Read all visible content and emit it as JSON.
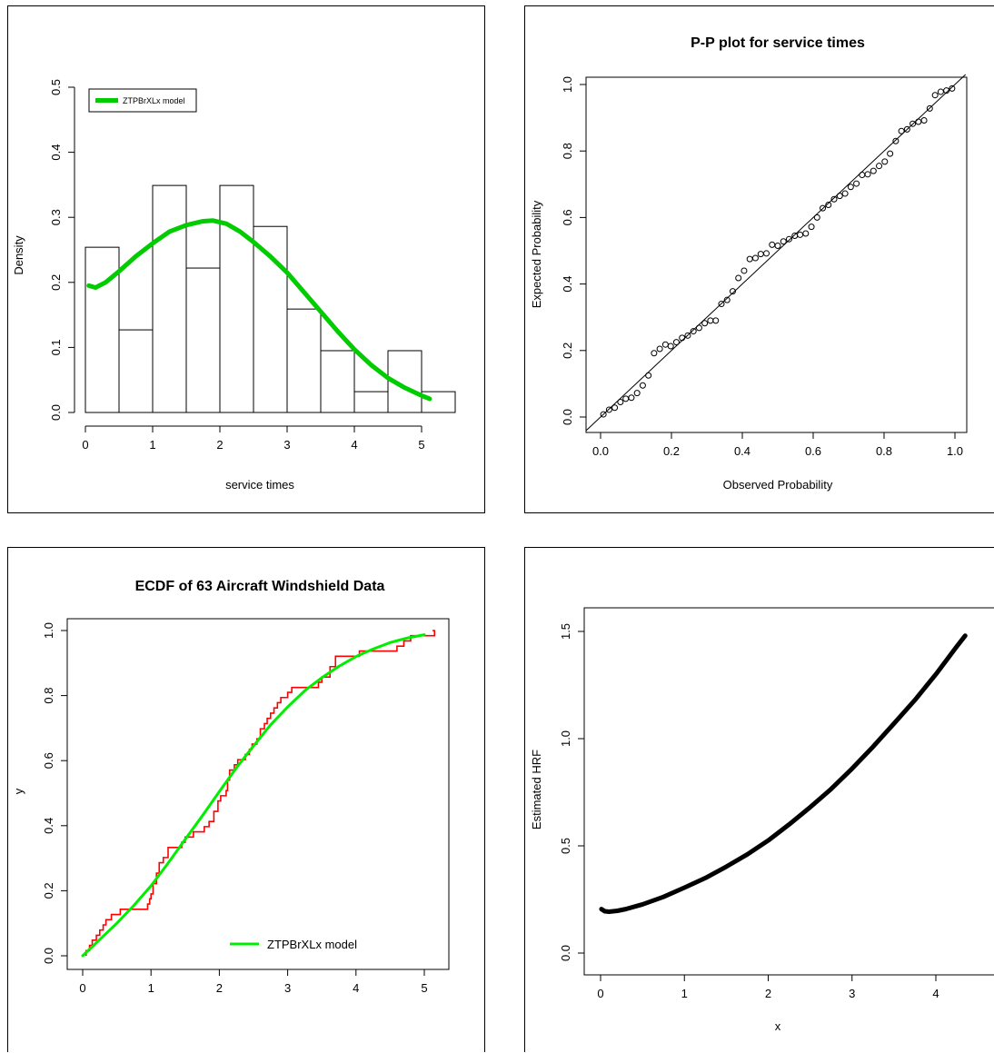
{
  "colors": {
    "density_curve": "#00cc00",
    "ecdf_step": "#ff0000",
    "ecdf_model": "#00ee00",
    "points": "#000000"
  },
  "chart_data": [
    {
      "type": "bar",
      "subtype": "histogram-with-density",
      "title": "",
      "xlabel": "service times",
      "ylabel": "Density",
      "xlim": [
        0,
        5.4
      ],
      "ylim": [
        0,
        0.5
      ],
      "xticks": [
        "0",
        "1",
        "2",
        "3",
        "4",
        "5"
      ],
      "yticks": [
        "0.0",
        "0.1",
        "0.2",
        "0.3",
        "0.4",
        "0.5"
      ],
      "bins": [
        {
          "from": 0.0,
          "to": 0.5,
          "density": 0.254
        },
        {
          "from": 0.5,
          "to": 1.0,
          "density": 0.127
        },
        {
          "from": 1.0,
          "to": 1.5,
          "density": 0.349
        },
        {
          "from": 1.5,
          "to": 2.0,
          "density": 0.222
        },
        {
          "from": 2.0,
          "to": 2.5,
          "density": 0.349
        },
        {
          "from": 2.5,
          "to": 3.0,
          "density": 0.286
        },
        {
          "from": 3.0,
          "to": 3.5,
          "density": 0.159
        },
        {
          "from": 3.5,
          "to": 4.0,
          "density": 0.095
        },
        {
          "from": 4.0,
          "to": 4.5,
          "density": 0.032
        },
        {
          "from": 4.5,
          "to": 5.0,
          "density": 0.095
        },
        {
          "from": 5.0,
          "to": 5.5,
          "density": 0.032
        }
      ],
      "series": [
        {
          "name": "ZTPBrXLx model",
          "x": [
            0.05,
            0.15,
            0.3,
            0.5,
            0.75,
            1.0,
            1.25,
            1.5,
            1.75,
            1.9,
            2.1,
            2.3,
            2.5,
            2.75,
            3.0,
            3.25,
            3.5,
            3.75,
            4.0,
            4.25,
            4.5,
            4.75,
            5.0,
            5.12
          ],
          "y": [
            0.195,
            0.192,
            0.2,
            0.217,
            0.24,
            0.26,
            0.278,
            0.288,
            0.294,
            0.295,
            0.29,
            0.278,
            0.262,
            0.24,
            0.215,
            0.185,
            0.155,
            0.125,
            0.097,
            0.073,
            0.053,
            0.038,
            0.026,
            0.021
          ]
        }
      ],
      "legend": {
        "position": "top-left",
        "entries": [
          "ZTPBrXLx model"
        ]
      }
    },
    {
      "type": "scatter",
      "title": "P-P plot for service times",
      "xlabel": "Observed Probability",
      "ylabel": "Expected Probability",
      "xlim": [
        0,
        1
      ],
      "ylim": [
        0,
        1
      ],
      "xticks": [
        "0.0",
        "0.2",
        "0.4",
        "0.6",
        "0.8",
        "1.0"
      ],
      "yticks": [
        "0.0",
        "0.2",
        "0.4",
        "0.6",
        "0.8",
        "1.0"
      ],
      "reference_line": "y = x",
      "points": [
        [
          0.008,
          0.008
        ],
        [
          0.024,
          0.022
        ],
        [
          0.04,
          0.028
        ],
        [
          0.056,
          0.045
        ],
        [
          0.071,
          0.055
        ],
        [
          0.087,
          0.058
        ],
        [
          0.103,
          0.072
        ],
        [
          0.119,
          0.095
        ],
        [
          0.135,
          0.125
        ],
        [
          0.151,
          0.192
        ],
        [
          0.167,
          0.205
        ],
        [
          0.183,
          0.218
        ],
        [
          0.198,
          0.213
        ],
        [
          0.214,
          0.225
        ],
        [
          0.23,
          0.238
        ],
        [
          0.246,
          0.245
        ],
        [
          0.262,
          0.258
        ],
        [
          0.278,
          0.268
        ],
        [
          0.294,
          0.282
        ],
        [
          0.31,
          0.29
        ],
        [
          0.325,
          0.29
        ],
        [
          0.341,
          0.34
        ],
        [
          0.357,
          0.352
        ],
        [
          0.373,
          0.378
        ],
        [
          0.389,
          0.418
        ],
        [
          0.405,
          0.44
        ],
        [
          0.421,
          0.475
        ],
        [
          0.437,
          0.478
        ],
        [
          0.452,
          0.49
        ],
        [
          0.468,
          0.492
        ],
        [
          0.484,
          0.518
        ],
        [
          0.5,
          0.515
        ],
        [
          0.516,
          0.528
        ],
        [
          0.532,
          0.535
        ],
        [
          0.548,
          0.545
        ],
        [
          0.563,
          0.548
        ],
        [
          0.579,
          0.552
        ],
        [
          0.595,
          0.572
        ],
        [
          0.611,
          0.6
        ],
        [
          0.627,
          0.628
        ],
        [
          0.643,
          0.638
        ],
        [
          0.659,
          0.655
        ],
        [
          0.675,
          0.665
        ],
        [
          0.69,
          0.672
        ],
        [
          0.706,
          0.692
        ],
        [
          0.722,
          0.702
        ],
        [
          0.738,
          0.728
        ],
        [
          0.754,
          0.73
        ],
        [
          0.77,
          0.74
        ],
        [
          0.786,
          0.755
        ],
        [
          0.802,
          0.768
        ],
        [
          0.817,
          0.792
        ],
        [
          0.833,
          0.83
        ],
        [
          0.849,
          0.86
        ],
        [
          0.865,
          0.865
        ],
        [
          0.881,
          0.882
        ],
        [
          0.897,
          0.888
        ],
        [
          0.913,
          0.892
        ],
        [
          0.929,
          0.928
        ],
        [
          0.944,
          0.968
        ],
        [
          0.96,
          0.978
        ],
        [
          0.976,
          0.982
        ],
        [
          0.992,
          0.988
        ]
      ]
    },
    {
      "type": "line",
      "subtype": "ecdf-with-model",
      "title": "ECDF of 63 Aircraft Windshield Data",
      "xlabel": "",
      "ylabel": "y",
      "xlim": [
        -0.1,
        5.2
      ],
      "ylim": [
        0,
        1
      ],
      "xticks": [
        "0",
        "1",
        "2",
        "3",
        "4",
        "5"
      ],
      "yticks": [
        "0.0",
        "0.2",
        "0.4",
        "0.6",
        "0.8",
        "1.0"
      ],
      "ecdf_steps": [
        [
          0.05,
          0.016
        ],
        [
          0.1,
          0.032
        ],
        [
          0.14,
          0.048
        ],
        [
          0.2,
          0.063
        ],
        [
          0.25,
          0.079
        ],
        [
          0.3,
          0.095
        ],
        [
          0.34,
          0.111
        ],
        [
          0.42,
          0.127
        ],
        [
          0.55,
          0.143
        ],
        [
          0.95,
          0.159
        ],
        [
          0.98,
          0.175
        ],
        [
          1.0,
          0.19
        ],
        [
          1.03,
          0.222
        ],
        [
          1.08,
          0.254
        ],
        [
          1.12,
          0.286
        ],
        [
          1.18,
          0.302
        ],
        [
          1.25,
          0.333
        ],
        [
          1.45,
          0.349
        ],
        [
          1.5,
          0.365
        ],
        [
          1.62,
          0.381
        ],
        [
          1.78,
          0.397
        ],
        [
          1.85,
          0.413
        ],
        [
          1.92,
          0.444
        ],
        [
          1.98,
          0.476
        ],
        [
          2.02,
          0.492
        ],
        [
          2.1,
          0.508
        ],
        [
          2.12,
          0.54
        ],
        [
          2.15,
          0.571
        ],
        [
          2.22,
          0.587
        ],
        [
          2.27,
          0.603
        ],
        [
          2.38,
          0.619
        ],
        [
          2.44,
          0.635
        ],
        [
          2.48,
          0.651
        ],
        [
          2.55,
          0.667
        ],
        [
          2.6,
          0.698
        ],
        [
          2.66,
          0.714
        ],
        [
          2.7,
          0.73
        ],
        [
          2.75,
          0.746
        ],
        [
          2.8,
          0.762
        ],
        [
          2.85,
          0.778
        ],
        [
          2.9,
          0.794
        ],
        [
          3.0,
          0.81
        ],
        [
          3.06,
          0.825
        ],
        [
          3.45,
          0.841
        ],
        [
          3.5,
          0.857
        ],
        [
          3.62,
          0.889
        ],
        [
          3.7,
          0.921
        ],
        [
          4.05,
          0.937
        ],
        [
          4.6,
          0.952
        ],
        [
          4.7,
          0.968
        ],
        [
          4.8,
          0.984
        ],
        [
          5.15,
          1.0
        ]
      ],
      "series": [
        {
          "name": "ZTPBrXLx model",
          "x": [
            0.0,
            0.25,
            0.5,
            0.75,
            1.0,
            1.25,
            1.5,
            1.75,
            2.0,
            2.25,
            2.5,
            2.75,
            3.0,
            3.25,
            3.5,
            3.75,
            4.0,
            4.25,
            4.5,
            4.75,
            5.0
          ],
          "y": [
            0.0,
            0.05,
            0.1,
            0.155,
            0.215,
            0.285,
            0.358,
            0.43,
            0.505,
            0.578,
            0.645,
            0.71,
            0.765,
            0.815,
            0.855,
            0.89,
            0.92,
            0.943,
            0.963,
            0.977,
            0.987
          ]
        }
      ],
      "legend": {
        "position": "bottom-right",
        "entries": [
          "ZTPBrXLx model"
        ]
      }
    },
    {
      "type": "line",
      "title": "",
      "xlabel": "x",
      "ylabel": "Estimated HRF",
      "xlim": [
        -0.2,
        4.35
      ],
      "ylim": [
        -0.05,
        1.57
      ],
      "xticks": [
        "0",
        "1",
        "2",
        "3",
        "4"
      ],
      "yticks": [
        "0.0",
        "0.5",
        "1.0",
        "1.5"
      ],
      "series": [
        {
          "x": [
            0.01,
            0.05,
            0.1,
            0.2,
            0.3,
            0.5,
            0.75,
            1.0,
            1.25,
            1.5,
            1.75,
            2.0,
            2.25,
            2.5,
            2.75,
            3.0,
            3.25,
            3.5,
            3.75,
            4.0,
            4.25,
            4.35
          ],
          "y": [
            0.205,
            0.195,
            0.193,
            0.197,
            0.205,
            0.227,
            0.262,
            0.305,
            0.35,
            0.403,
            0.46,
            0.525,
            0.6,
            0.68,
            0.765,
            0.86,
            0.962,
            1.07,
            1.18,
            1.3,
            1.43,
            1.48
          ]
        }
      ]
    }
  ]
}
